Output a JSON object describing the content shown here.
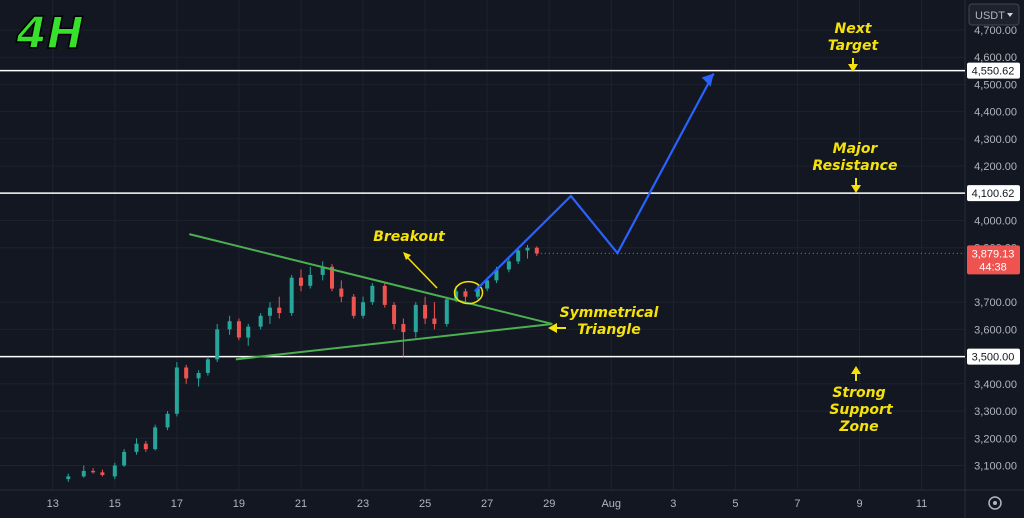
{
  "timeframe": "4H",
  "currency": "USDT",
  "colors": {
    "background": "#131722",
    "up_candle": "#26a69a",
    "down_candle": "#ef5350",
    "triangle": "#4caf50",
    "projection": "#2962ff",
    "annotation": "#f5e20b",
    "level_line": "#ffffff",
    "grid": "#1e222d",
    "current_price_tag": "#ef5350"
  },
  "current_price": {
    "price": "3,879.13",
    "countdown": "44:38"
  },
  "horizontal_levels": [
    {
      "label": "4,550.62",
      "value": 4550.62
    },
    {
      "label": "4,100.62",
      "value": 4100.62
    },
    {
      "label": "3,500.00",
      "value": 3500
    }
  ],
  "annotations": {
    "next_target": [
      "Next",
      "Target"
    ],
    "major_resistance": [
      "Major",
      "Resistance"
    ],
    "breakout": "Breakout",
    "symmetrical_triangle": [
      "Symmetrical",
      "Triangle"
    ],
    "strong_support": [
      "Strong",
      "Support",
      "Zone"
    ]
  },
  "chart_data": {
    "type": "candlestick",
    "y_ticks": [
      "4,700.00",
      "4,600.00",
      "4,500.00",
      "4,400.00",
      "4,300.00",
      "4,200.00",
      "4,000.00",
      "3,900.00",
      "3,700.00",
      "3,600.00",
      "3,400.00",
      "3,300.00",
      "3,200.00",
      "3,100.00"
    ],
    "y_tick_values": [
      4700,
      4600,
      4500,
      4400,
      4300,
      4200,
      4000,
      3900,
      3700,
      3600,
      3400,
      3300,
      3200,
      3100
    ],
    "ylim": [
      3010,
      4810
    ],
    "x_ticks": [
      "13",
      "15",
      "17",
      "19",
      "21",
      "23",
      "25",
      "27",
      "29",
      "Aug",
      "3",
      "5",
      "7",
      "9",
      "11"
    ],
    "x_tick_days": [
      13,
      15,
      17,
      19,
      21,
      23,
      25,
      27,
      29,
      31,
      33,
      35,
      37,
      39,
      41
    ],
    "xlim_days": [
      11.3,
      42.4
    ],
    "candles": [
      {
        "d": 13.5,
        "o": 3050,
        "h": 3070,
        "l": 3040,
        "c": 3060
      },
      {
        "d": 14.0,
        "o": 3060,
        "h": 3100,
        "l": 3055,
        "c": 3080
      },
      {
        "d": 14.3,
        "o": 3080,
        "h": 3090,
        "l": 3070,
        "c": 3075
      },
      {
        "d": 14.6,
        "o": 3075,
        "h": 3085,
        "l": 3060,
        "c": 3065
      },
      {
        "d": 15.0,
        "o": 3060,
        "h": 3110,
        "l": 3050,
        "c": 3100
      },
      {
        "d": 15.3,
        "o": 3100,
        "h": 3160,
        "l": 3095,
        "c": 3150
      },
      {
        "d": 15.7,
        "o": 3150,
        "h": 3200,
        "l": 3140,
        "c": 3180
      },
      {
        "d": 16.0,
        "o": 3180,
        "h": 3190,
        "l": 3150,
        "c": 3160
      },
      {
        "d": 16.3,
        "o": 3160,
        "h": 3250,
        "l": 3155,
        "c": 3240
      },
      {
        "d": 16.7,
        "o": 3240,
        "h": 3300,
        "l": 3230,
        "c": 3290
      },
      {
        "d": 17.0,
        "o": 3290,
        "h": 3480,
        "l": 3280,
        "c": 3460
      },
      {
        "d": 17.3,
        "o": 3460,
        "h": 3470,
        "l": 3400,
        "c": 3420
      },
      {
        "d": 17.7,
        "o": 3420,
        "h": 3450,
        "l": 3390,
        "c": 3440
      },
      {
        "d": 18.0,
        "o": 3440,
        "h": 3500,
        "l": 3430,
        "c": 3490
      },
      {
        "d": 18.3,
        "o": 3490,
        "h": 3620,
        "l": 3480,
        "c": 3600
      },
      {
        "d": 18.7,
        "o": 3600,
        "h": 3650,
        "l": 3580,
        "c": 3630
      },
      {
        "d": 19.0,
        "o": 3630,
        "h": 3640,
        "l": 3560,
        "c": 3570
      },
      {
        "d": 19.3,
        "o": 3570,
        "h": 3620,
        "l": 3540,
        "c": 3610
      },
      {
        "d": 19.7,
        "o": 3610,
        "h": 3660,
        "l": 3600,
        "c": 3650
      },
      {
        "d": 20.0,
        "o": 3650,
        "h": 3700,
        "l": 3620,
        "c": 3680
      },
      {
        "d": 20.3,
        "o": 3680,
        "h": 3720,
        "l": 3640,
        "c": 3660
      },
      {
        "d": 20.7,
        "o": 3660,
        "h": 3800,
        "l": 3650,
        "c": 3790
      },
      {
        "d": 21.0,
        "o": 3790,
        "h": 3820,
        "l": 3740,
        "c": 3760
      },
      {
        "d": 21.3,
        "o": 3760,
        "h": 3830,
        "l": 3750,
        "c": 3800
      },
      {
        "d": 21.7,
        "o": 3800,
        "h": 3850,
        "l": 3780,
        "c": 3830
      },
      {
        "d": 22.0,
        "o": 3830,
        "h": 3840,
        "l": 3740,
        "c": 3750
      },
      {
        "d": 22.3,
        "o": 3750,
        "h": 3780,
        "l": 3700,
        "c": 3720
      },
      {
        "d": 22.7,
        "o": 3720,
        "h": 3730,
        "l": 3640,
        "c": 3650
      },
      {
        "d": 23.0,
        "o": 3650,
        "h": 3720,
        "l": 3640,
        "c": 3700
      },
      {
        "d": 23.3,
        "o": 3700,
        "h": 3770,
        "l": 3690,
        "c": 3760
      },
      {
        "d": 23.7,
        "o": 3760,
        "h": 3770,
        "l": 3680,
        "c": 3690
      },
      {
        "d": 24.0,
        "o": 3690,
        "h": 3700,
        "l": 3600,
        "c": 3620
      },
      {
        "d": 24.3,
        "o": 3620,
        "h": 3640,
        "l": 3500,
        "c": 3590
      },
      {
        "d": 24.7,
        "o": 3590,
        "h": 3700,
        "l": 3570,
        "c": 3690
      },
      {
        "d": 25.0,
        "o": 3690,
        "h": 3720,
        "l": 3620,
        "c": 3640
      },
      {
        "d": 25.3,
        "o": 3640,
        "h": 3700,
        "l": 3600,
        "c": 3620
      },
      {
        "d": 25.7,
        "o": 3620,
        "h": 3720,
        "l": 3610,
        "c": 3710
      },
      {
        "d": 26.0,
        "o": 3710,
        "h": 3760,
        "l": 3700,
        "c": 3740
      },
      {
        "d": 26.3,
        "o": 3740,
        "h": 3750,
        "l": 3700,
        "c": 3720
      },
      {
        "d": 26.7,
        "o": 3720,
        "h": 3760,
        "l": 3710,
        "c": 3750
      },
      {
        "d": 27.0,
        "o": 3750,
        "h": 3790,
        "l": 3740,
        "c": 3780
      },
      {
        "d": 27.3,
        "o": 3780,
        "h": 3830,
        "l": 3770,
        "c": 3820
      },
      {
        "d": 27.7,
        "o": 3820,
        "h": 3860,
        "l": 3810,
        "c": 3850
      },
      {
        "d": 28.0,
        "o": 3850,
        "h": 3900,
        "l": 3840,
        "c": 3890
      },
      {
        "d": 28.3,
        "o": 3890,
        "h": 3910,
        "l": 3860,
        "c": 3900
      },
      {
        "d": 28.6,
        "o": 3900,
        "h": 3905,
        "l": 3870,
        "c": 3879
      }
    ],
    "triangle": {
      "upper": [
        [
          17.4,
          3950
        ],
        [
          29.1,
          3620
        ]
      ],
      "lower": [
        [
          18.9,
          3490
        ],
        [
          29.1,
          3620
        ]
      ]
    },
    "projection": [
      [
        26.6,
        3740
      ],
      [
        29.7,
        4090
      ],
      [
        31.2,
        3880
      ],
      [
        34.3,
        4540
      ]
    ]
  }
}
